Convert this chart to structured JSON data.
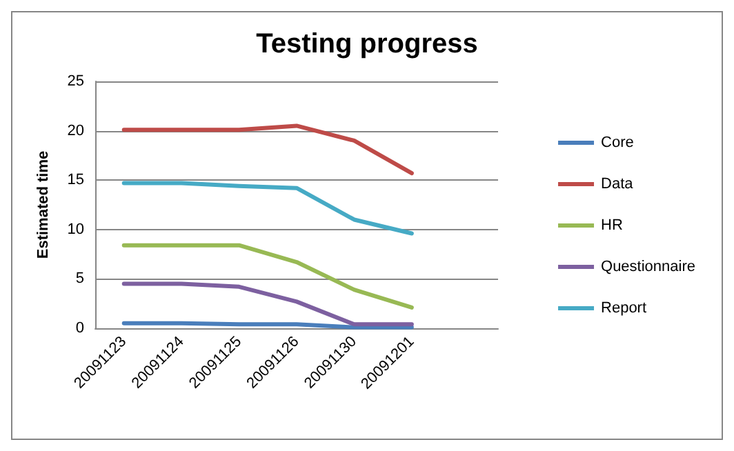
{
  "chart_data": {
    "type": "line",
    "title": "Testing progress",
    "ylabel": "Estimated time",
    "categories": [
      "20091123",
      "20091124",
      "20091125",
      "20091126",
      "20091130",
      "20091201",
      null
    ],
    "series": [
      {
        "name": "Core",
        "color": "#4a7ebb",
        "values": [
          0.5,
          0.5,
          0.4,
          0.4,
          0.1,
          0.1,
          null
        ]
      },
      {
        "name": "Data",
        "color": "#be4b48",
        "values": [
          20.1,
          20.1,
          20.1,
          20.5,
          19,
          15.7,
          null
        ]
      },
      {
        "name": "HR",
        "color": "#98b954",
        "values": [
          8.4,
          8.4,
          8.4,
          6.7,
          3.9,
          2.1,
          null
        ]
      },
      {
        "name": "Questionnaire",
        "color": "#7d60a0",
        "values": [
          4.5,
          4.5,
          4.2,
          2.7,
          0.4,
          0.4,
          null
        ]
      },
      {
        "name": "Report",
        "color": "#46aac5",
        "values": [
          14.7,
          14.7,
          14.4,
          14.2,
          11,
          9.6,
          null
        ]
      }
    ],
    "ylim": [
      0,
      25
    ],
    "yticks": [
      0,
      5,
      10,
      15,
      20,
      25
    ],
    "grid": "y",
    "legend": "right",
    "marker": "none",
    "line_style": "solid"
  }
}
